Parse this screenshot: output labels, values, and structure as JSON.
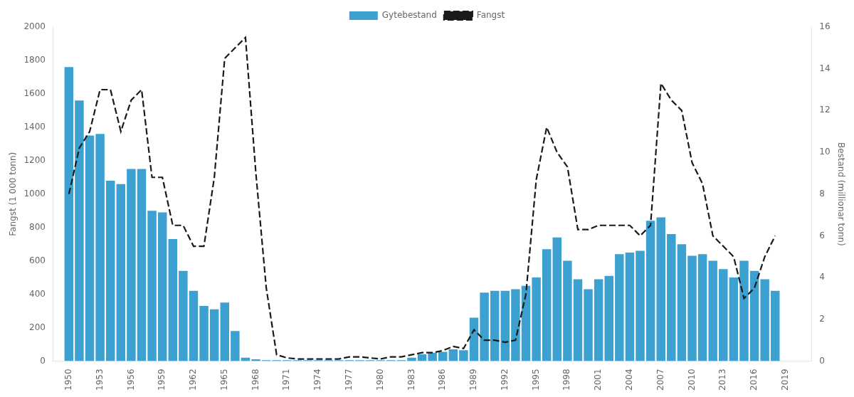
{
  "chart_data": {
    "type": "bar",
    "x": [
      1950,
      1951,
      1952,
      1953,
      1954,
      1955,
      1956,
      1957,
      1958,
      1959,
      1960,
      1961,
      1962,
      1963,
      1964,
      1965,
      1966,
      1967,
      1968,
      1969,
      1970,
      1971,
      1972,
      1973,
      1974,
      1975,
      1976,
      1977,
      1978,
      1979,
      1980,
      1981,
      1982,
      1983,
      1984,
      1985,
      1986,
      1987,
      1988,
      1989,
      1990,
      1991,
      1992,
      1993,
      1994,
      1995,
      1996,
      1997,
      1998,
      1999,
      2000,
      2001,
      2002,
      2003,
      2004,
      2005,
      2006,
      2007,
      2008,
      2009,
      2010,
      2011,
      2012,
      2013,
      2014,
      2015,
      2016,
      2017,
      2018,
      2019,
      2020,
      2021
    ],
    "series": [
      {
        "name": "Gytebestand",
        "type": "bar",
        "color": "#3ca0d0",
        "values": [
          1760,
          1560,
          1350,
          1360,
          1080,
          1060,
          1150,
          1150,
          900,
          890,
          730,
          540,
          420,
          330,
          310,
          350,
          180,
          20,
          10,
          5,
          5,
          5,
          5,
          5,
          5,
          5,
          5,
          5,
          5,
          5,
          5,
          5,
          5,
          20,
          40,
          50,
          55,
          70,
          65,
          260,
          410,
          420,
          420,
          430,
          450,
          500,
          670,
          740,
          600,
          490,
          430,
          490,
          510,
          640,
          650,
          660,
          840,
          860,
          760,
          700,
          630,
          640,
          600,
          550,
          500,
          600,
          540,
          490,
          420,
          null,
          null,
          null
        ]
      },
      {
        "name": "Fangst",
        "type": "line",
        "axis": "y2",
        "color": "#1a1a1a",
        "line_style": "dashed",
        "values": [
          8.0,
          10.2,
          11.0,
          13.0,
          13.0,
          11.0,
          12.5,
          13.0,
          8.8,
          8.8,
          6.5,
          6.5,
          5.5,
          5.5,
          8.8,
          14.5,
          15.0,
          15.5,
          9.0,
          3.5,
          0.3,
          0.15,
          0.1,
          0.1,
          0.1,
          0.1,
          0.1,
          0.2,
          0.2,
          0.15,
          0.1,
          0.2,
          0.2,
          0.3,
          0.4,
          0.4,
          0.5,
          0.7,
          0.6,
          1.5,
          1.0,
          1.0,
          0.9,
          1.0,
          3.2,
          8.7,
          11.2,
          10.0,
          9.3,
          6.3,
          6.3,
          6.5,
          6.5,
          6.5,
          6.5,
          6.0,
          6.5,
          13.3,
          12.5,
          12.0,
          9.5,
          8.5,
          6.0,
          5.5,
          5.0,
          3.0,
          3.5,
          5.0,
          6.0,
          null,
          null,
          null
        ]
      }
    ],
    "ylabel": "Fangst (1 000 tonn)",
    "y2label": "Bestand (millionar tonn)",
    "xlim": [
      1948.5,
      2021.5
    ],
    "xticks": [
      1950,
      1953,
      1956,
      1959,
      1962,
      1965,
      1968,
      1971,
      1974,
      1977,
      1980,
      1983,
      1986,
      1989,
      1992,
      1995,
      1998,
      2001,
      2004,
      2007,
      2010,
      2013,
      2016,
      2019
    ],
    "ylim": [
      0,
      2000
    ],
    "yticks": [
      0,
      200,
      400,
      600,
      800,
      1000,
      1200,
      1400,
      1600,
      1800,
      2000
    ],
    "y2lim": [
      0,
      16
    ],
    "y2ticks": [
      0,
      2,
      4,
      6,
      8,
      10,
      12,
      14,
      16
    ],
    "grid": false,
    "legend": "top"
  }
}
